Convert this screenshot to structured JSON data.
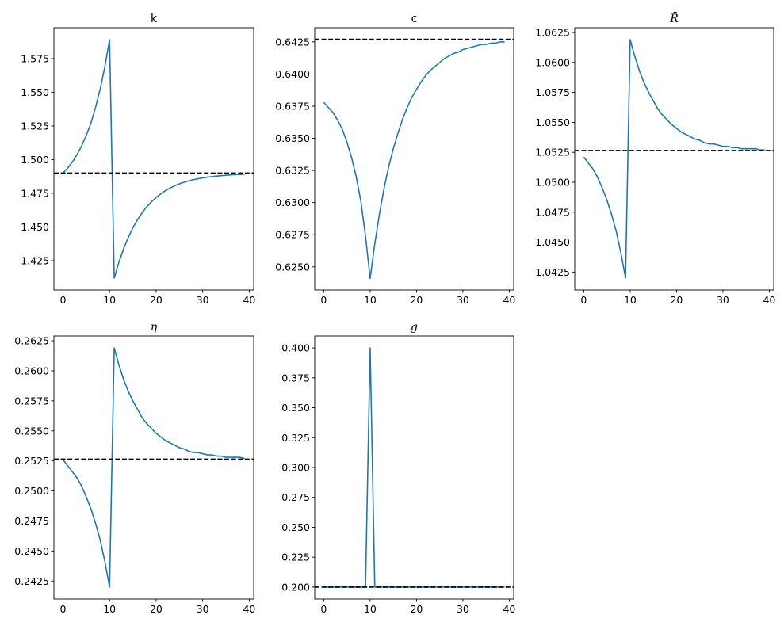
{
  "chart_data": [
    {
      "type": "line",
      "title": "k",
      "title_italic": false,
      "x": [
        0,
        1,
        2,
        3,
        4,
        5,
        6,
        7,
        8,
        9,
        10,
        11,
        12,
        13,
        14,
        15,
        16,
        17,
        18,
        19,
        20,
        21,
        22,
        23,
        24,
        25,
        26,
        27,
        28,
        29,
        30,
        31,
        32,
        33,
        34,
        35,
        36,
        37,
        38,
        39
      ],
      "values": [
        1.49,
        1.4937,
        1.4982,
        1.5036,
        1.5102,
        1.518,
        1.5271,
        1.5389,
        1.5526,
        1.5691,
        1.589,
        1.412,
        1.4237,
        1.4336,
        1.4421,
        1.4493,
        1.4554,
        1.4606,
        1.465,
        1.4687,
        1.4719,
        1.4746,
        1.477,
        1.4789,
        1.4806,
        1.482,
        1.4832,
        1.4842,
        1.4851,
        1.4858,
        1.4864,
        1.487,
        1.4874,
        1.4878,
        1.4881,
        1.4884,
        1.4887,
        1.4889,
        1.489,
        1.4892
      ],
      "steady_state": 1.49,
      "xlim": [
        -1.95,
        40.95
      ],
      "ylim": [
        1.4032,
        1.5979
      ],
      "xticks": [
        0,
        10,
        20,
        30,
        40
      ],
      "xtick_labels": [
        "0",
        "10",
        "20",
        "30",
        "40"
      ],
      "yticks": [
        1.425,
        1.45,
        1.475,
        1.5,
        1.525,
        1.55,
        1.575
      ],
      "ytick_labels": [
        "1.425",
        "1.450",
        "1.475",
        "1.500",
        "1.525",
        "1.550",
        "1.575"
      ],
      "grid": false
    },
    {
      "type": "line",
      "title": "c",
      "title_italic": false,
      "x": [
        0,
        1,
        2,
        3,
        4,
        5,
        6,
        7,
        8,
        9,
        10,
        11,
        12,
        13,
        14,
        15,
        16,
        17,
        18,
        19,
        20,
        21,
        22,
        23,
        24,
        25,
        26,
        27,
        28,
        29,
        30,
        31,
        32,
        33,
        34,
        35,
        36,
        37,
        38,
        39
      ],
      "values": [
        0.6378,
        0.6374,
        0.637,
        0.6364,
        0.6357,
        0.6347,
        0.6335,
        0.632,
        0.6301,
        0.6274,
        0.6241,
        0.6268,
        0.6291,
        0.6311,
        0.6328,
        0.6342,
        0.6354,
        0.6365,
        0.6374,
        0.6382,
        0.6388,
        0.6394,
        0.6399,
        0.6403,
        0.6406,
        0.6409,
        0.6412,
        0.6414,
        0.6416,
        0.6417,
        0.6419,
        0.642,
        0.6421,
        0.6422,
        0.6423,
        0.6423,
        0.6424,
        0.6424,
        0.6425,
        0.6425
      ],
      "steady_state": 0.6427,
      "xlim": [
        -1.95,
        40.95
      ],
      "ylim": [
        0.6232,
        0.6436
      ],
      "xticks": [
        0,
        10,
        20,
        30,
        40
      ],
      "xtick_labels": [
        "0",
        "10",
        "20",
        "30",
        "40"
      ],
      "yticks": [
        0.625,
        0.6275,
        0.63,
        0.6325,
        0.635,
        0.6375,
        0.64,
        0.6425
      ],
      "ytick_labels": [
        "0.6250",
        "0.6275",
        "0.6300",
        "0.6325",
        "0.6350",
        "0.6375",
        "0.6400",
        "0.6425"
      ],
      "grid": false
    },
    {
      "type": "line",
      "title": "R̄",
      "title_italic": true,
      "x": [
        0,
        1,
        2,
        3,
        4,
        5,
        6,
        7,
        8,
        9,
        10,
        11,
        12,
        13,
        14,
        15,
        16,
        17,
        18,
        19,
        20,
        21,
        22,
        23,
        24,
        25,
        26,
        27,
        28,
        29,
        30,
        31,
        32,
        33,
        34,
        35,
        36,
        37,
        38,
        39
      ],
      "values": [
        1.0521,
        1.0516,
        1.0511,
        1.0504,
        1.0495,
        1.0485,
        1.0473,
        1.0459,
        1.0441,
        1.042,
        1.0619,
        1.0605,
        1.0593,
        1.0583,
        1.0575,
        1.0568,
        1.0561,
        1.0556,
        1.0552,
        1.0548,
        1.0545,
        1.0542,
        1.054,
        1.0538,
        1.0536,
        1.0535,
        1.0533,
        1.0532,
        1.0532,
        1.0531,
        1.053,
        1.053,
        1.0529,
        1.0529,
        1.0528,
        1.0528,
        1.0528,
        1.0528,
        1.0527,
        1.0527
      ],
      "steady_state": 1.05265,
      "xlim": [
        -1.95,
        40.95
      ],
      "ylim": [
        1.041,
        1.0629
      ],
      "xticks": [
        0,
        10,
        20,
        30,
        40
      ],
      "xtick_labels": [
        "0",
        "10",
        "20",
        "30",
        "40"
      ],
      "yticks": [
        1.0425,
        1.045,
        1.0475,
        1.05,
        1.0525,
        1.055,
        1.0575,
        1.06,
        1.0625
      ],
      "ytick_labels": [
        "1.0425",
        "1.0450",
        "1.0475",
        "1.0500",
        "1.0525",
        "1.0550",
        "1.0575",
        "1.0600",
        "1.0625"
      ],
      "grid": false
    },
    {
      "type": "line",
      "title": "η",
      "title_italic": true,
      "x": [
        0,
        1,
        2,
        3,
        4,
        5,
        6,
        7,
        8,
        9,
        10,
        11,
        12,
        13,
        14,
        15,
        16,
        17,
        18,
        19,
        20,
        21,
        22,
        23,
        24,
        25,
        26,
        27,
        28,
        29,
        30,
        31,
        32,
        33,
        34,
        35,
        36,
        37,
        38,
        39
      ],
      "values": [
        0.2526,
        0.2521,
        0.2516,
        0.2511,
        0.2504,
        0.2495,
        0.2485,
        0.2473,
        0.2459,
        0.2441,
        0.242,
        0.2619,
        0.2605,
        0.2593,
        0.2583,
        0.2575,
        0.2568,
        0.2561,
        0.2556,
        0.2552,
        0.2548,
        0.2545,
        0.2542,
        0.254,
        0.2538,
        0.2536,
        0.2535,
        0.2533,
        0.2532,
        0.2532,
        0.2531,
        0.253,
        0.253,
        0.2529,
        0.2529,
        0.2528,
        0.2528,
        0.2528,
        0.2528,
        0.2527
      ],
      "steady_state": 0.25265,
      "xlim": [
        -1.95,
        40.95
      ],
      "ylim": [
        0.241,
        0.2629
      ],
      "xticks": [
        0,
        10,
        20,
        30,
        40
      ],
      "xtick_labels": [
        "0",
        "10",
        "20",
        "30",
        "40"
      ],
      "yticks": [
        0.2425,
        0.245,
        0.2475,
        0.25,
        0.2525,
        0.255,
        0.2575,
        0.26,
        0.2625
      ],
      "ytick_labels": [
        "0.2425",
        "0.2450",
        "0.2475",
        "0.2500",
        "0.2525",
        "0.2550",
        "0.2575",
        "0.2600",
        "0.2625"
      ],
      "grid": false
    },
    {
      "type": "line",
      "title": "g",
      "title_italic": true,
      "x": [
        0,
        1,
        2,
        3,
        4,
        5,
        6,
        7,
        8,
        9,
        10,
        11,
        12,
        13,
        14,
        15,
        16,
        17,
        18,
        19,
        20,
        21,
        22,
        23,
        24,
        25,
        26,
        27,
        28,
        29,
        30,
        31,
        32,
        33,
        34,
        35,
        36,
        37,
        38,
        39
      ],
      "values": [
        0.2,
        0.2,
        0.2,
        0.2,
        0.2,
        0.2,
        0.2,
        0.2,
        0.2,
        0.2,
        0.4,
        0.2,
        0.2,
        0.2,
        0.2,
        0.2,
        0.2,
        0.2,
        0.2,
        0.2,
        0.2,
        0.2,
        0.2,
        0.2,
        0.2,
        0.2,
        0.2,
        0.2,
        0.2,
        0.2,
        0.2,
        0.2,
        0.2,
        0.2,
        0.2,
        0.2,
        0.2,
        0.2,
        0.2,
        0.2
      ],
      "steady_state": 0.2,
      "xlim": [
        -1.95,
        40.95
      ],
      "ylim": [
        0.19,
        0.41
      ],
      "xticks": [
        0,
        10,
        20,
        30,
        40
      ],
      "xtick_labels": [
        "0",
        "10",
        "20",
        "30",
        "40"
      ],
      "yticks": [
        0.2,
        0.225,
        0.25,
        0.275,
        0.3,
        0.325,
        0.35,
        0.375,
        0.4
      ],
      "ytick_labels": [
        "0.200",
        "0.225",
        "0.250",
        "0.275",
        "0.300",
        "0.325",
        "0.350",
        "0.375",
        "0.400"
      ],
      "grid": false
    }
  ],
  "colors": {
    "series": "#1f77b4",
    "steady_state_line": "#000000",
    "axes": "#000000"
  },
  "layout": {
    "rows": 2,
    "cols": 3
  }
}
